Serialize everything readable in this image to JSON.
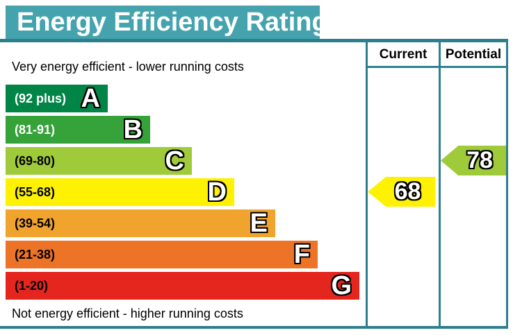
{
  "title": "Energy Efficiency Rating",
  "columns": {
    "current": "Current",
    "potential": "Potential"
  },
  "captions": {
    "top": "Very energy efficient - lower running costs",
    "bottom": "Not energy efficient - higher running costs"
  },
  "bands": [
    {
      "letter": "A",
      "range": "(92 plus)",
      "color": "#008547",
      "range_color": "#ffffff"
    },
    {
      "letter": "B",
      "range": "(81-91)",
      "color": "#36a23a",
      "range_color": "#ffffff"
    },
    {
      "letter": "C",
      "range": "(69-80)",
      "color": "#9fcb3a",
      "range_color": "#000000"
    },
    {
      "letter": "D",
      "range": "(55-68)",
      "color": "#fef102",
      "range_color": "#000000"
    },
    {
      "letter": "E",
      "range": "(39-54)",
      "color": "#f0a42e",
      "range_color": "#000000"
    },
    {
      "letter": "F",
      "range": "(21-38)",
      "color": "#ed7326",
      "range_color": "#000000"
    },
    {
      "letter": "G",
      "range": "(1-20)",
      "color": "#e5261f",
      "range_color": "#000000"
    }
  ],
  "ratings": {
    "current": {
      "value": "68",
      "band": "D",
      "color": "#fef102"
    },
    "potential": {
      "value": "78",
      "band": "C",
      "color": "#9fcb3a"
    }
  },
  "theme": {
    "title_bg": "#44a3ad",
    "title_text": "#ffffff",
    "border": "#2d7f8e"
  },
  "chart_data": {
    "type": "bar",
    "title": "Energy Efficiency Rating",
    "categories": [
      "A",
      "B",
      "C",
      "D",
      "E",
      "F",
      "G"
    ],
    "band_ranges": [
      "92 plus",
      "81-91",
      "69-80",
      "55-68",
      "39-54",
      "21-38",
      "1-20"
    ],
    "band_colors": [
      "#008547",
      "#36a23a",
      "#9fcb3a",
      "#fef102",
      "#f0a42e",
      "#ed7326",
      "#e5261f"
    ],
    "bar_lengths_relative": [
      0.29,
      0.41,
      0.53,
      0.65,
      0.76,
      0.88,
      1.0
    ],
    "series": [
      {
        "name": "Current",
        "value": 68,
        "band": "D"
      },
      {
        "name": "Potential",
        "value": 78,
        "band": "C"
      }
    ],
    "annotations": [
      "Very energy efficient - lower running costs",
      "Not energy efficient - higher running costs"
    ],
    "legend_position": "top-right columns",
    "orientation": "horizontal"
  }
}
